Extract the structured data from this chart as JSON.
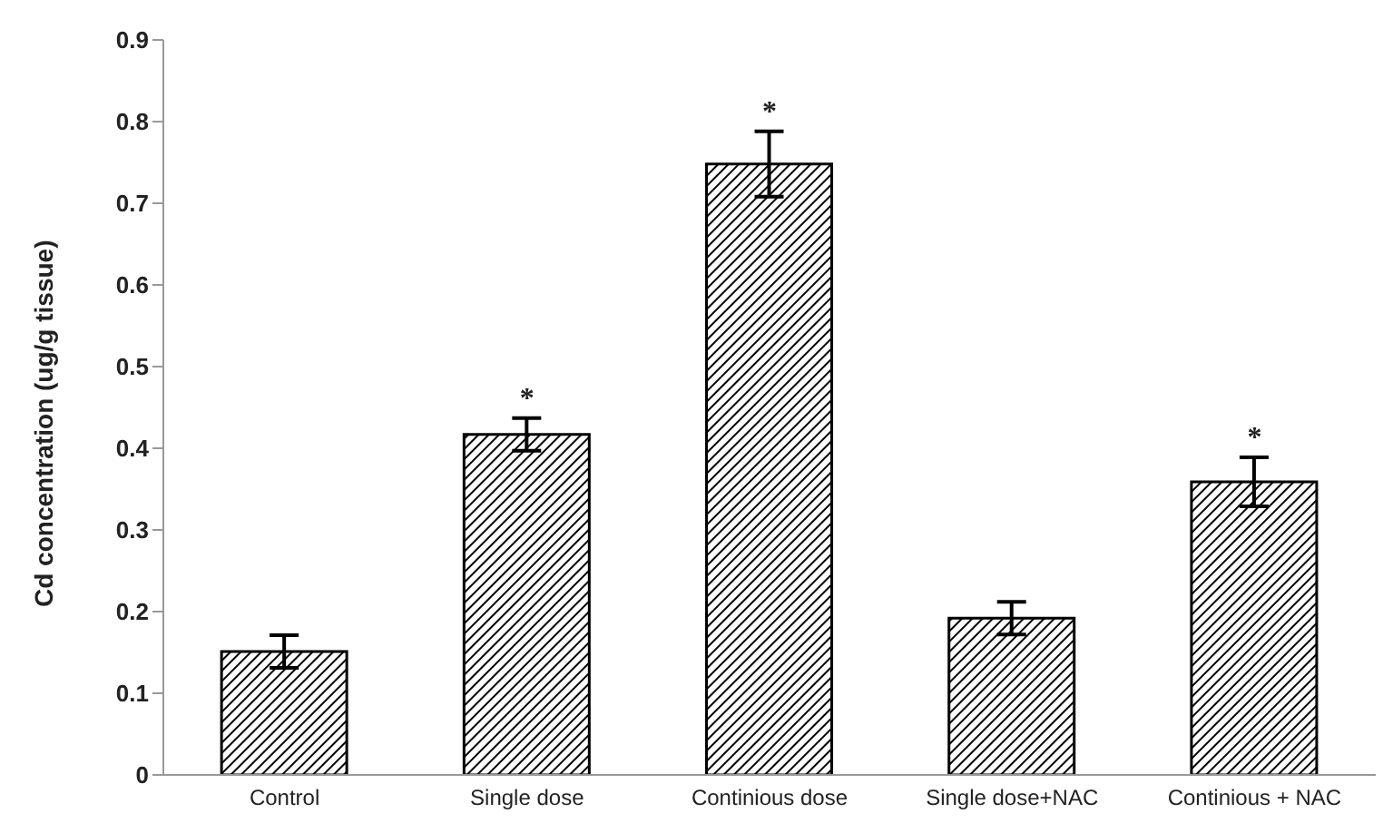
{
  "chart_data": {
    "type": "bar",
    "ylabel": "Cd concentration (ug/g tissue)",
    "categories": [
      "Control",
      "Single dose",
      "Continious dose",
      "Single dose+NAC",
      "Continious + NAC"
    ],
    "values": [
      0.151,
      0.417,
      0.748,
      0.192,
      0.359
    ],
    "errors": [
      0.02,
      0.02,
      0.04,
      0.02,
      0.03
    ],
    "color": "#000000",
    "ylim": [
      0,
      0.9
    ],
    "yticks": [
      0,
      0.1,
      0.2,
      0.3,
      0.4,
      0.5,
      0.6,
      0.7,
      0.8,
      0.9
    ],
    "annotations": [
      {
        "text": "*",
        "x": "Single dose",
        "y": 0.417
      },
      {
        "text": "*",
        "x": "Continious dose",
        "y": 0.748
      },
      {
        "text": "*",
        "x": "Continious + NAC",
        "y": 0.359
      }
    ]
  }
}
